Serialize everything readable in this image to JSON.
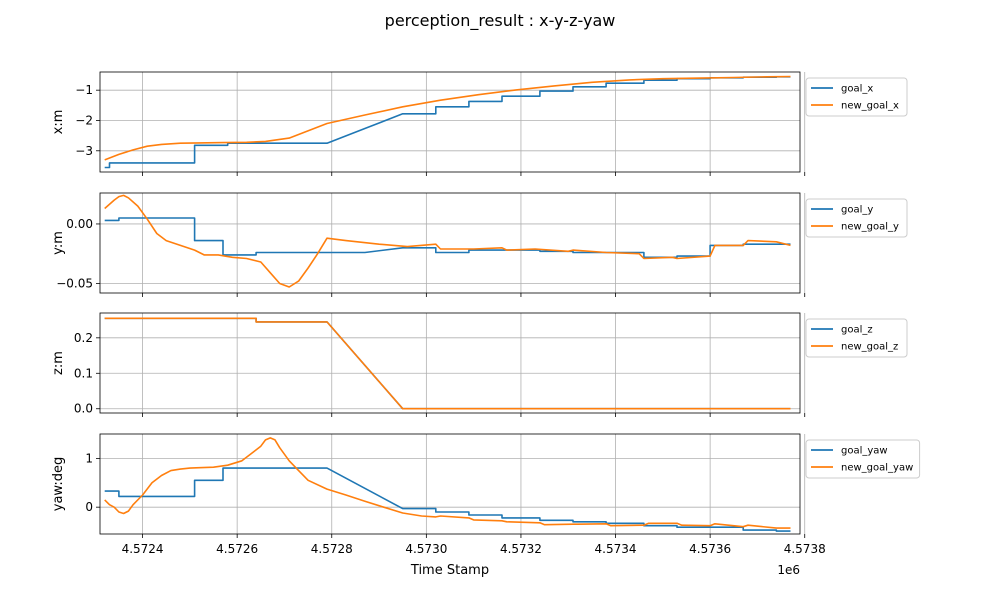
{
  "chart_data": {
    "type": "line",
    "title": "perception_result : x-y-z-yaw",
    "xlabel": "Time Stamp",
    "x_offset_label": "1e6",
    "xlim": [
      4.57231,
      4.57379
    ],
    "xticks": [
      "4.5724",
      "4.5726",
      "4.5728",
      "4.5730",
      "4.5732",
      "4.5734",
      "4.5736",
      "4.5738"
    ],
    "grid": true,
    "legend_placement": "right-outside",
    "colors": {
      "goal": "#1f77b4",
      "new_goal": "#ff7f0e"
    },
    "panels": [
      {
        "ylabel": "x:m",
        "ylim": [
          -3.7,
          -0.4
        ],
        "yticks": [
          "-1",
          "-2",
          "-3"
        ],
        "series": [
          {
            "name": "goal_x",
            "x": [
              4.57232,
              4.57233,
              4.57233,
              4.5724,
              4.5724,
              4.57251,
              4.57251,
              4.57258,
              4.57258,
              4.57264,
              4.57264,
              4.57279,
              4.57295,
              4.57302,
              4.57302,
              4.57309,
              4.57309,
              4.57316,
              4.57316,
              4.57324,
              4.57324,
              4.57331,
              4.57331,
              4.57338,
              4.57338,
              4.57346,
              4.57346,
              4.57353,
              4.57353,
              4.5736,
              4.5736,
              4.57367,
              4.57367,
              4.57374,
              4.57374,
              4.57377
            ],
            "y": [
              -3.55,
              -3.55,
              -3.4,
              -3.4,
              -3.4,
              -3.4,
              -2.82,
              -2.82,
              -2.75,
              -2.75,
              -2.75,
              -2.75,
              -1.78,
              -1.78,
              -1.55,
              -1.55,
              -1.37,
              -1.37,
              -1.2,
              -1.2,
              -1.03,
              -1.03,
              -0.89,
              -0.89,
              -0.77,
              -0.77,
              -0.67,
              -0.67,
              -0.62,
              -0.62,
              -0.59,
              -0.59,
              -0.57,
              -0.57,
              -0.56,
              -0.56
            ]
          },
          {
            "name": "new_goal_x",
            "x": [
              4.57232,
              4.57235,
              4.57238,
              4.57241,
              4.57244,
              4.57248,
              4.57252,
              4.57257,
              4.57262,
              4.57266,
              4.57271,
              4.57279,
              4.57287,
              4.57295,
              4.57303,
              4.57311,
              4.57319,
              4.57327,
              4.57335,
              4.57343,
              4.5735,
              4.57358,
              4.57365,
              4.57372,
              4.57377
            ],
            "y": [
              -3.3,
              -3.12,
              -2.97,
              -2.85,
              -2.79,
              -2.75,
              -2.74,
              -2.73,
              -2.72,
              -2.69,
              -2.58,
              -2.1,
              -1.82,
              -1.55,
              -1.33,
              -1.15,
              -0.99,
              -0.86,
              -0.74,
              -0.66,
              -0.62,
              -0.6,
              -0.58,
              -0.56,
              -0.55
            ]
          }
        ]
      },
      {
        "ylabel": "y:m",
        "ylim": [
          -0.058,
          0.026
        ],
        "yticks": [
          "0.00",
          "-0.05"
        ],
        "series": [
          {
            "name": "goal_y",
            "x": [
              4.57232,
              4.57235,
              4.57235,
              4.57251,
              4.57251,
              4.57257,
              4.57257,
              4.57264,
              4.57264,
              4.57287,
              4.57295,
              4.57302,
              4.57302,
              4.57309,
              4.57309,
              4.57324,
              4.57324,
              4.57331,
              4.57331,
              4.57346,
              4.57346,
              4.57353,
              4.57353,
              4.5736,
              4.5736,
              4.57367,
              4.57367,
              4.57377
            ],
            "y": [
              0.003,
              0.003,
              0.005,
              0.005,
              -0.014,
              -0.014,
              -0.026,
              -0.026,
              -0.024,
              -0.024,
              -0.02,
              -0.02,
              -0.024,
              -0.024,
              -0.022,
              -0.022,
              -0.023,
              -0.023,
              -0.024,
              -0.024,
              -0.028,
              -0.028,
              -0.027,
              -0.027,
              -0.018,
              -0.018,
              -0.017,
              -0.017
            ]
          },
          {
            "name": "new_goal_y",
            "x": [
              4.57232,
              4.57234,
              4.57235,
              4.57236,
              4.57237,
              4.57239,
              4.57241,
              4.57243,
              4.57245,
              4.57248,
              4.57251,
              4.57253,
              4.57256,
              4.57259,
              4.57262,
              4.57265,
              4.57267,
              4.57269,
              4.57271,
              4.57273,
              4.57275,
              4.57277,
              4.57279,
              4.57283,
              4.5729,
              4.57296,
              4.57302,
              4.57303,
              4.5731,
              4.57316,
              4.57317,
              4.57323,
              4.5733,
              4.57331,
              4.57338,
              4.57345,
              4.57346,
              4.57352,
              4.57353,
              4.5736,
              4.57361,
              4.57367,
              4.57368,
              4.57374,
              4.57377
            ],
            "y": [
              0.013,
              0.02,
              0.023,
              0.024,
              0.022,
              0.015,
              0.004,
              -0.008,
              -0.014,
              -0.018,
              -0.022,
              -0.026,
              -0.026,
              -0.028,
              -0.029,
              -0.032,
              -0.041,
              -0.05,
              -0.053,
              -0.048,
              -0.037,
              -0.025,
              -0.012,
              -0.014,
              -0.017,
              -0.019,
              -0.017,
              -0.021,
              -0.021,
              -0.02,
              -0.022,
              -0.021,
              -0.023,
              -0.022,
              -0.024,
              -0.025,
              -0.029,
              -0.028,
              -0.029,
              -0.027,
              -0.018,
              -0.018,
              -0.014,
              -0.015,
              -0.018
            ]
          }
        ]
      },
      {
        "ylabel": "z:m",
        "ylim": [
          -0.012,
          0.27
        ],
        "yticks": [
          "0.2",
          "0.1",
          "0.0"
        ],
        "series": [
          {
            "name": "goal_z",
            "x": [
              4.57232,
              4.57264,
              4.57264,
              4.57279,
              4.57295,
              4.57377
            ],
            "y": [
              0.255,
              0.255,
              0.245,
              0.245,
              0.0,
              0.0
            ]
          },
          {
            "name": "new_goal_z",
            "x": [
              4.57232,
              4.57264,
              4.57264,
              4.57279,
              4.57295,
              4.57377
            ],
            "y": [
              0.255,
              0.255,
              0.245,
              0.245,
              0.0,
              0.0
            ]
          }
        ]
      },
      {
        "ylabel": "yaw:deg",
        "ylim": [
          -0.55,
          1.5
        ],
        "yticks": [
          "1",
          "0"
        ],
        "series": [
          {
            "name": "goal_yaw",
            "x": [
              4.57232,
              4.57235,
              4.57235,
              4.57251,
              4.57251,
              4.57257,
              4.57257,
              4.57264,
              4.57264,
              4.57279,
              4.57295,
              4.57302,
              4.57302,
              4.57309,
              4.57309,
              4.57316,
              4.57316,
              4.57324,
              4.57324,
              4.57331,
              4.57331,
              4.57338,
              4.57338,
              4.57346,
              4.57346,
              4.57353,
              4.57353,
              4.57367,
              4.57367,
              4.57374,
              4.57374,
              4.57377
            ],
            "y": [
              0.33,
              0.33,
              0.22,
              0.22,
              0.55,
              0.55,
              0.8,
              0.8,
              0.8,
              0.8,
              -0.03,
              -0.03,
              -0.1,
              -0.1,
              -0.16,
              -0.16,
              -0.22,
              -0.22,
              -0.27,
              -0.27,
              -0.3,
              -0.3,
              -0.33,
              -0.33,
              -0.38,
              -0.38,
              -0.41,
              -0.41,
              -0.47,
              -0.47,
              -0.49,
              -0.49
            ]
          },
          {
            "name": "new_goal_yaw",
            "x": [
              4.57232,
              4.57233,
              4.57234,
              4.57235,
              4.57236,
              4.57237,
              4.57238,
              4.5724,
              4.57242,
              4.57244,
              4.57246,
              4.57248,
              4.5725,
              4.57252,
              4.57255,
              4.57258,
              4.57261,
              4.57263,
              4.57265,
              4.57266,
              4.57267,
              4.57268,
              4.57269,
              4.57271,
              4.57273,
              4.57275,
              4.57279,
              4.57283,
              4.57287,
              4.57291,
              4.57295,
              4.57299,
              4.57302,
              4.57303,
              4.57309,
              4.5731,
              4.57316,
              4.57317,
              4.57324,
              4.57325,
              4.57331,
              4.57332,
              4.57338,
              4.57339,
              4.57346,
              4.57347,
              4.57353,
              4.57354,
              4.5736,
              4.57361,
              4.57367,
              4.57368,
              4.57374,
              4.57377
            ],
            "y": [
              0.15,
              0.05,
              0.0,
              -0.1,
              -0.13,
              -0.08,
              0.05,
              0.25,
              0.5,
              0.65,
              0.75,
              0.78,
              0.8,
              0.81,
              0.82,
              0.86,
              0.95,
              1.1,
              1.25,
              1.38,
              1.42,
              1.38,
              1.22,
              0.95,
              0.75,
              0.55,
              0.37,
              0.25,
              0.12,
              0.0,
              -0.12,
              -0.18,
              -0.2,
              -0.18,
              -0.22,
              -0.26,
              -0.28,
              -0.3,
              -0.32,
              -0.36,
              -0.35,
              -0.35,
              -0.34,
              -0.38,
              -0.37,
              -0.33,
              -0.33,
              -0.37,
              -0.38,
              -0.34,
              -0.4,
              -0.37,
              -0.43,
              -0.43
            ]
          }
        ]
      }
    ]
  }
}
